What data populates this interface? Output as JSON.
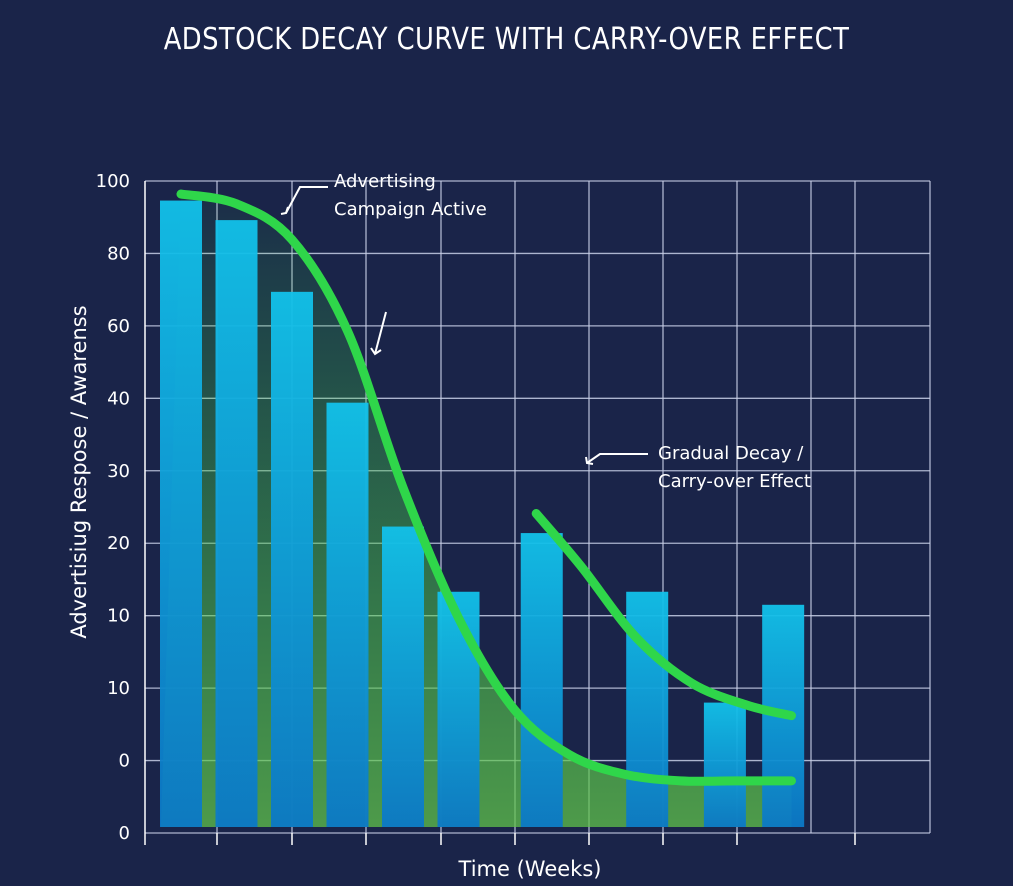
{
  "chart_data": {
    "type": "bar",
    "title": "ADSTOCK DECAY CURVE WITH CARRY-OVER EFFECT",
    "xlabel": "Time (Weeks)",
    "ylabel": "Advertisiug Respose / Awarenss",
    "y_tick_labels": [
      "0",
      "0",
      "10",
      "10",
      "20",
      "30",
      "40",
      "60",
      "80",
      "100"
    ],
    "grid": true,
    "bars": [
      {
        "index": 1,
        "value": 97
      },
      {
        "index": 2,
        "value": 94
      },
      {
        "index": 3,
        "value": 83
      },
      {
        "index": 4,
        "value": 66
      },
      {
        "index": 5,
        "value": 47
      },
      {
        "index": 6,
        "value": 37
      },
      {
        "index": 7.5,
        "value": 46
      },
      {
        "index": 9.4,
        "value": 37
      },
      {
        "index": 10.8,
        "value": 20
      },
      {
        "index": 11.85,
        "value": 35
      }
    ],
    "series": [
      {
        "kind": "decay-curve",
        "points": [
          [
            1,
            98
          ],
          [
            2,
            96.5
          ],
          [
            3,
            91
          ],
          [
            4,
            77
          ],
          [
            5,
            53
          ],
          [
            6,
            33
          ],
          [
            7,
            19
          ],
          [
            8,
            12
          ],
          [
            9,
            9
          ],
          [
            10,
            8
          ],
          [
            11,
            8
          ],
          [
            12,
            8
          ]
        ]
      },
      {
        "kind": "carry-over-curve",
        "points": [
          [
            7.4,
            49
          ],
          [
            8.2,
            41
          ],
          [
            9.2,
            30
          ],
          [
            10.2,
            23
          ],
          [
            11.2,
            19.6
          ],
          [
            12,
            18
          ]
        ]
      }
    ],
    "annotations": [
      {
        "lines": [
          "Advertising",
          "Campaign Active"
        ],
        "value": 92
      },
      {
        "lines": [
          "Gradual Decay /",
          "Carry-over Effect"
        ],
        "value": 51
      }
    ],
    "colors": {
      "background": "#1a2449",
      "bar_top": "#10bde6",
      "bar_bottom": "#0b7fcd",
      "curve": "#2fd64a",
      "grid": "#c8cfe6"
    }
  }
}
